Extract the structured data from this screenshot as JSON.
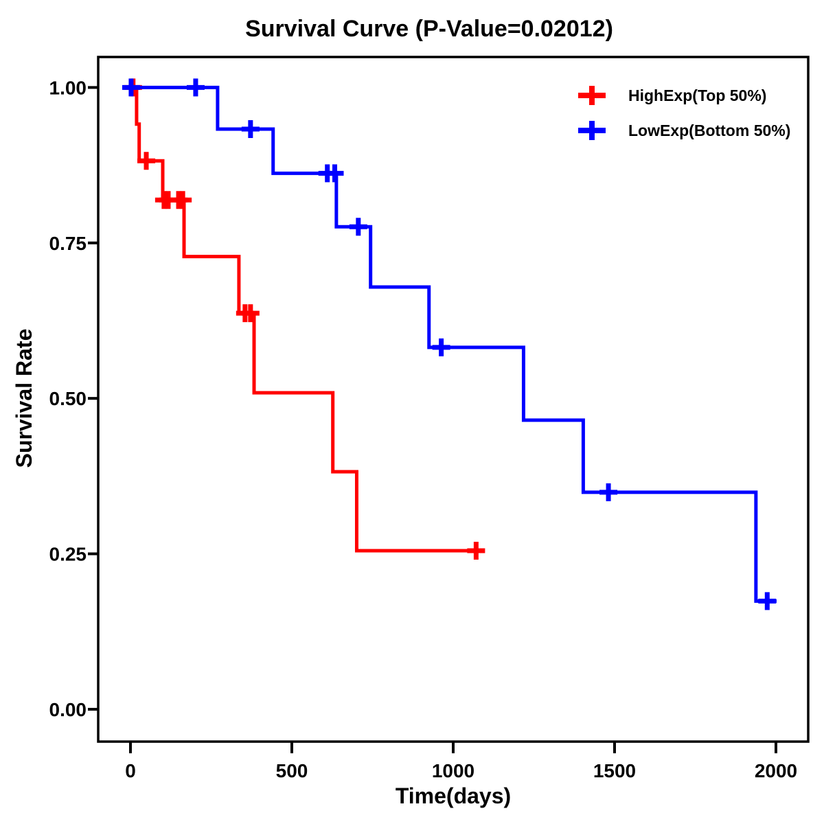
{
  "chart_data": {
    "type": "line",
    "subtype": "kaplan-meier-survival-step",
    "title": "Survival Curve (P-Value=0.02012)",
    "p_value": "0.02012",
    "xlabel": "Time(days)",
    "ylabel": "Survival Rate",
    "xlim": [
      -100,
      2100
    ],
    "ylim": [
      -0.052,
      1.049
    ],
    "xticks": [
      0,
      500,
      1000,
      1500,
      2000
    ],
    "xtick_labels": [
      "0",
      "500",
      "1000",
      "1500",
      "2000"
    ],
    "yticks": [
      0,
      0.25,
      0.5,
      0.75,
      1
    ],
    "ytick_labels": [
      "0.00",
      "0.25",
      "0.50",
      "0.75",
      "1.00"
    ],
    "grid": false,
    "legend_position": "top-right-inside",
    "colors": {
      "high_exp": "#FF0000",
      "low_exp": "#0000FF",
      "axis": "#000000",
      "background": "#FFFFFF"
    },
    "series": [
      {
        "name": "HighExp(Top 50%)",
        "key": "highexp",
        "color": "#FF0000",
        "steps": [
          [
            0,
            1.0
          ],
          [
            19,
            0.941
          ],
          [
            27,
            0.882
          ],
          [
            100,
            0.819
          ],
          [
            166,
            0.728
          ],
          [
            336,
            0.637
          ],
          [
            383,
            0.509
          ],
          [
            627,
            0.382
          ],
          [
            701,
            0.255
          ]
        ],
        "end_time": 1080,
        "censor_marks": [
          [
            8,
            1.0
          ],
          [
            49,
            0.882
          ],
          [
            104,
            0.819
          ],
          [
            117,
            0.819
          ],
          [
            149,
            0.819
          ],
          [
            162,
            0.819
          ],
          [
            355,
            0.637
          ],
          [
            372,
            0.637
          ],
          [
            1071,
            0.255
          ]
        ]
      },
      {
        "name": "LowExp(Bottom 50%)",
        "key": "lowexp",
        "color": "#0000FF",
        "steps": [
          [
            0,
            1.0
          ],
          [
            270,
            0.933
          ],
          [
            442,
            0.862
          ],
          [
            638,
            0.776
          ],
          [
            744,
            0.679
          ],
          [
            925,
            0.582
          ],
          [
            1218,
            0.465
          ],
          [
            1403,
            0.349
          ],
          [
            1938,
            0.174
          ]
        ],
        "end_time": 2002,
        "censor_marks": [
          [
            2,
            1.0
          ],
          [
            202,
            1.0
          ],
          [
            372,
            0.933
          ],
          [
            610,
            0.862
          ],
          [
            633,
            0.862
          ],
          [
            706,
            0.776
          ],
          [
            963,
            0.582
          ],
          [
            1481,
            0.349
          ],
          [
            1973,
            0.174
          ]
        ]
      }
    ]
  }
}
